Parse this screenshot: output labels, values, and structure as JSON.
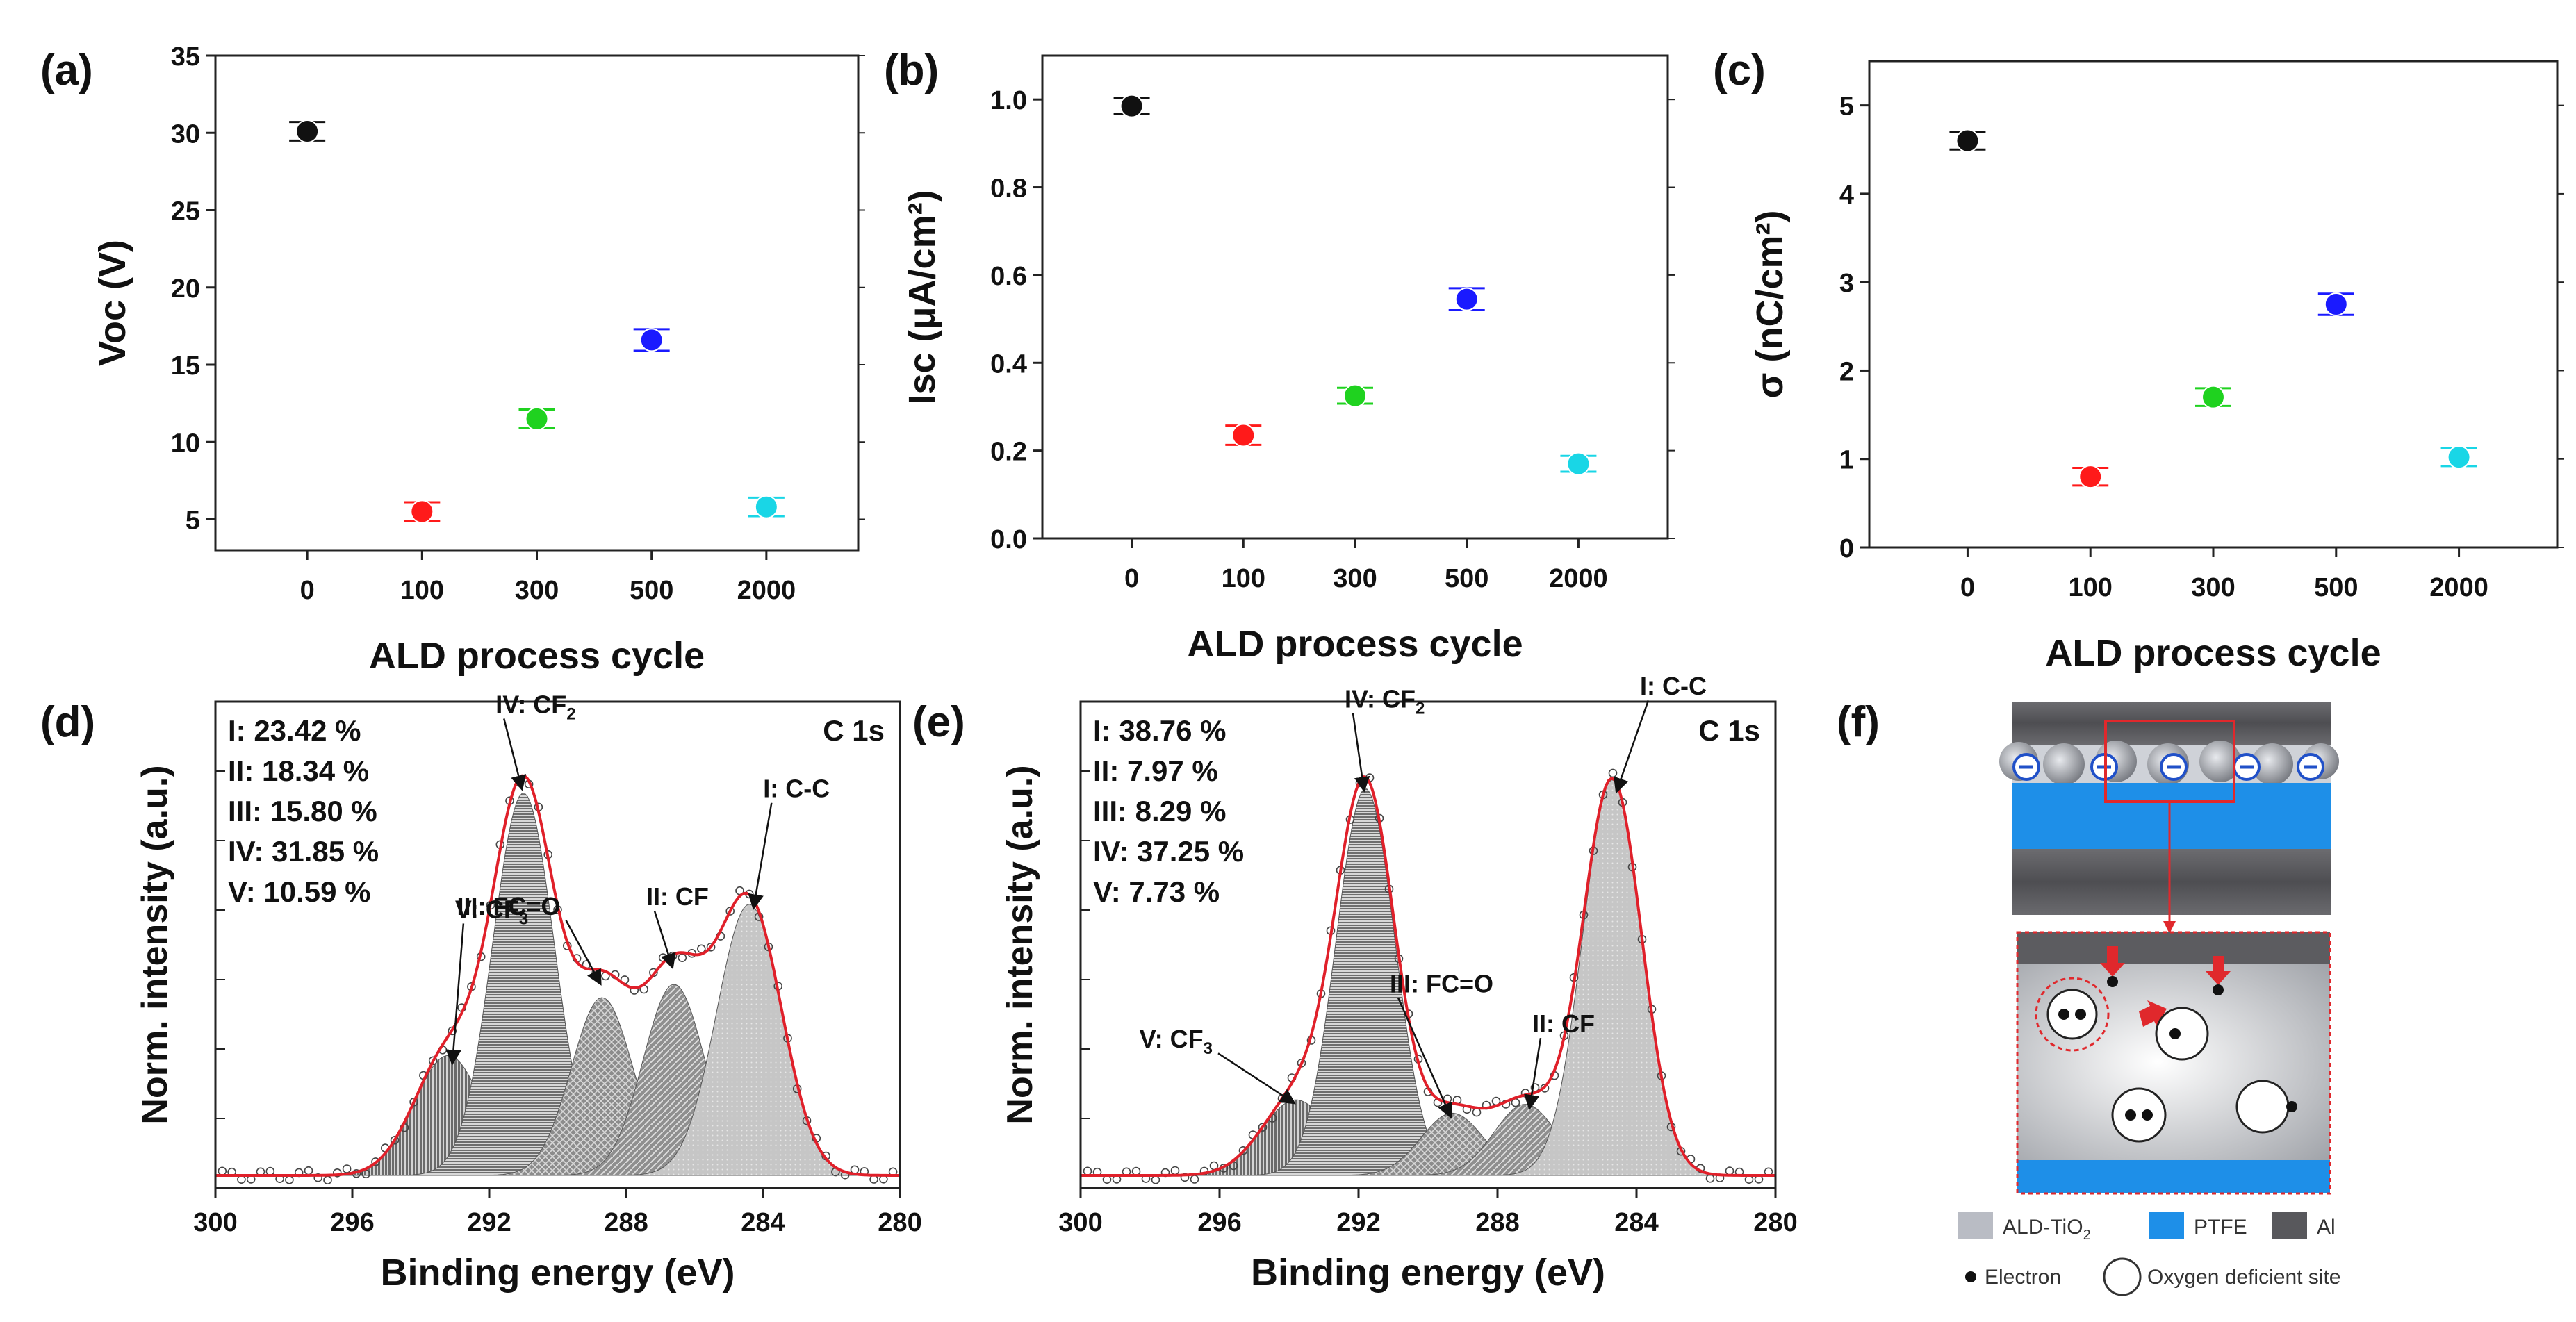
{
  "panel_labels": [
    "(a)",
    "(b)",
    "(c)",
    "(d)",
    "(e)",
    "(f)"
  ],
  "chart_data": [
    {
      "id": "a",
      "type": "scatter",
      "categories": [
        "0",
        "100",
        "300",
        "500",
        "2000"
      ],
      "values": [
        30.1,
        5.5,
        11.5,
        16.6,
        5.8
      ],
      "errors": [
        0.6,
        0.6,
        0.6,
        0.7,
        0.6
      ],
      "colors": [
        "#111111",
        "#ff1a1a",
        "#1fd21f",
        "#1a1aff",
        "#19d6e6"
      ],
      "ylim": [
        3,
        35
      ],
      "yticks": [
        "5",
        "10",
        "15",
        "20",
        "25",
        "30",
        "35"
      ],
      "xlabel": "ALD process cycle",
      "ylabel": "Voc (V)"
    },
    {
      "id": "b",
      "type": "scatter",
      "categories": [
        "0",
        "100",
        "300",
        "500",
        "2000"
      ],
      "values": [
        0.985,
        0.235,
        0.325,
        0.545,
        0.17
      ],
      "errors": [
        0.018,
        0.022,
        0.018,
        0.025,
        0.018
      ],
      "colors": [
        "#111111",
        "#ff1a1a",
        "#1fd21f",
        "#1a1aff",
        "#19d6e6"
      ],
      "ylim": [
        0.0,
        1.1
      ],
      "yticks": [
        "0.0",
        "0.2",
        "0.4",
        "0.6",
        "0.8",
        "1.0"
      ],
      "xlabel": "ALD process cycle",
      "ylabel": "Isc (μA/cm²)"
    },
    {
      "id": "c",
      "type": "scatter",
      "categories": [
        "0",
        "100",
        "300",
        "500",
        "2000"
      ],
      "values": [
        4.6,
        0.8,
        1.7,
        2.75,
        1.02
      ],
      "errors": [
        0.1,
        0.1,
        0.1,
        0.12,
        0.1
      ],
      "colors": [
        "#111111",
        "#ff1a1a",
        "#1fd21f",
        "#1a1aff",
        "#19d6e6"
      ],
      "ylim": [
        0,
        5.5
      ],
      "yticks": [
        "0",
        "1",
        "2",
        "3",
        "4",
        "5"
      ],
      "xlabel": "ALD process cycle",
      "ylabel": "σ (nC/cm²)"
    },
    {
      "id": "d",
      "type": "line",
      "title": "C 1s",
      "xlim": [
        300,
        280
      ],
      "xticks": [
        "300",
        "296",
        "292",
        "288",
        "284",
        "280"
      ],
      "xlabel": "Binding energy (eV)",
      "ylabel": "Norm. intensity (a.u.)",
      "composition": [
        "I: 23.42 %",
        "II: 18.34 %",
        "III: 15.80 %",
        "IV: 31.85 %",
        "V: 10.59 %"
      ],
      "peaks": [
        {
          "name": "V: CF₃",
          "center": 293.2,
          "height": 0.27,
          "width": 1.0,
          "fill": "#5a5a5a"
        },
        {
          "name": "IV: CF₂",
          "center": 291.0,
          "height": 0.86,
          "width": 0.9,
          "fill": "#6b6b6b"
        },
        {
          "name": "III: FC=O",
          "center": 288.7,
          "height": 0.4,
          "width": 0.9,
          "fill": "#8a8a8a"
        },
        {
          "name": "II: CF",
          "center": 286.6,
          "height": 0.43,
          "width": 0.9,
          "fill": "#8e8e8e"
        },
        {
          "name": "I: C-C",
          "center": 284.4,
          "height": 0.61,
          "width": 0.95,
          "fill": "#c4c4c4"
        }
      ]
    },
    {
      "id": "e",
      "type": "line",
      "title": "C 1s",
      "xlim": [
        300,
        280
      ],
      "xticks": [
        "300",
        "296",
        "292",
        "288",
        "284",
        "280"
      ],
      "xlabel": "Binding energy (eV)",
      "ylabel": "Norm. intensity (a.u.)",
      "composition": [
        "I: 38.76 %",
        "II: 7.97 %",
        "III: 8.29 %",
        "IV: 37.25 %",
        "V: 7.73 %"
      ],
      "peaks": [
        {
          "name": "V: CF₃",
          "center": 293.8,
          "height": 0.17,
          "width": 1.0,
          "fill": "#5a5a5a"
        },
        {
          "name": "IV: CF₂",
          "center": 291.8,
          "height": 0.87,
          "width": 0.85,
          "fill": "#6b6b6b"
        },
        {
          "name": "III: FC=O",
          "center": 289.3,
          "height": 0.14,
          "width": 0.9,
          "fill": "#8a8a8a"
        },
        {
          "name": "II: CF",
          "center": 287.2,
          "height": 0.16,
          "width": 0.9,
          "fill": "#8e8e8e"
        },
        {
          "name": "I: C-C",
          "center": 284.7,
          "height": 0.89,
          "width": 0.85,
          "fill": "#c4c4c4"
        }
      ]
    }
  ],
  "schematic": {
    "legend": {
      "tio2": "ALD-TiO",
      "tio2_sub": "2",
      "ptfe": "PTFE",
      "al": "Al",
      "electron": "Electron",
      "oxygen_site": "Oxygen deficient site"
    },
    "colors": {
      "al": "#58585c",
      "ptfe": "#1e8fe8",
      "tio2": "#b9bcc4",
      "highlight": "#e0282c"
    }
  }
}
